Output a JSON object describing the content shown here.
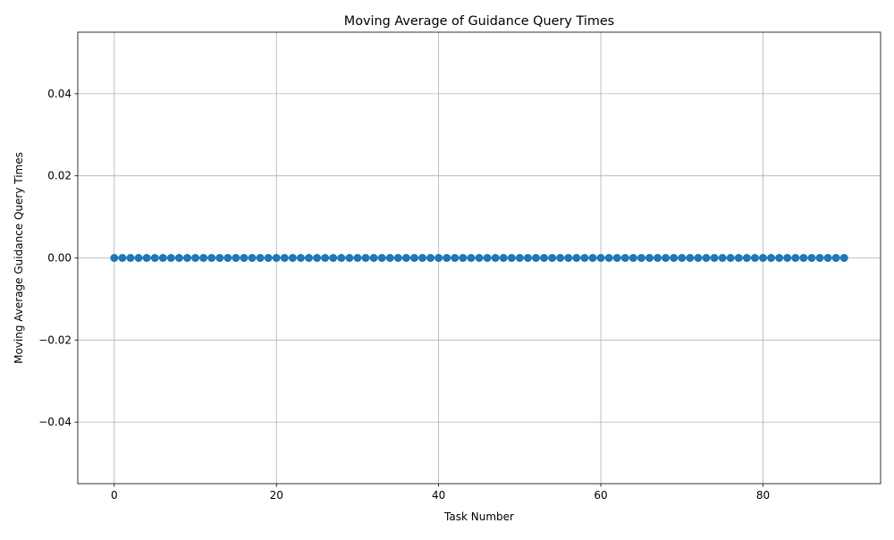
{
  "chart_data": {
    "type": "line",
    "title": "Moving Average of Guidance Query Times",
    "xlabel": "Task Number",
    "ylabel": "Moving Average Guidance Query Times",
    "xlim": [
      -4.5,
      94.5
    ],
    "ylim": [
      -0.055,
      0.055
    ],
    "x_ticks": [
      0,
      20,
      40,
      60,
      80
    ],
    "x_tick_labels": [
      "0",
      "20",
      "40",
      "60",
      "80"
    ],
    "y_ticks": [
      -0.04,
      -0.02,
      0.0,
      0.02,
      0.04
    ],
    "y_tick_labels": [
      "−0.04",
      "−0.02",
      "0.00",
      "0.02",
      "0.04"
    ],
    "grid": true,
    "marker": "circle",
    "series": [
      {
        "color": "#1f77b4",
        "x": [
          0,
          1,
          2,
          3,
          4,
          5,
          6,
          7,
          8,
          9,
          10,
          11,
          12,
          13,
          14,
          15,
          16,
          17,
          18,
          19,
          20,
          21,
          22,
          23,
          24,
          25,
          26,
          27,
          28,
          29,
          30,
          31,
          32,
          33,
          34,
          35,
          36,
          37,
          38,
          39,
          40,
          41,
          42,
          43,
          44,
          45,
          46,
          47,
          48,
          49,
          50,
          51,
          52,
          53,
          54,
          55,
          56,
          57,
          58,
          59,
          60,
          61,
          62,
          63,
          64,
          65,
          66,
          67,
          68,
          69,
          70,
          71,
          72,
          73,
          74,
          75,
          76,
          77,
          78,
          79,
          80,
          81,
          82,
          83,
          84,
          85,
          86,
          87,
          88,
          89,
          90
        ],
        "values": [
          0,
          0,
          0,
          0,
          0,
          0,
          0,
          0,
          0,
          0,
          0,
          0,
          0,
          0,
          0,
          0,
          0,
          0,
          0,
          0,
          0,
          0,
          0,
          0,
          0,
          0,
          0,
          0,
          0,
          0,
          0,
          0,
          0,
          0,
          0,
          0,
          0,
          0,
          0,
          0,
          0,
          0,
          0,
          0,
          0,
          0,
          0,
          0,
          0,
          0,
          0,
          0,
          0,
          0,
          0,
          0,
          0,
          0,
          0,
          0,
          0,
          0,
          0,
          0,
          0,
          0,
          0,
          0,
          0,
          0,
          0,
          0,
          0,
          0,
          0,
          0,
          0,
          0,
          0,
          0,
          0,
          0,
          0,
          0,
          0,
          0,
          0,
          0,
          0,
          0,
          0
        ]
      }
    ]
  }
}
